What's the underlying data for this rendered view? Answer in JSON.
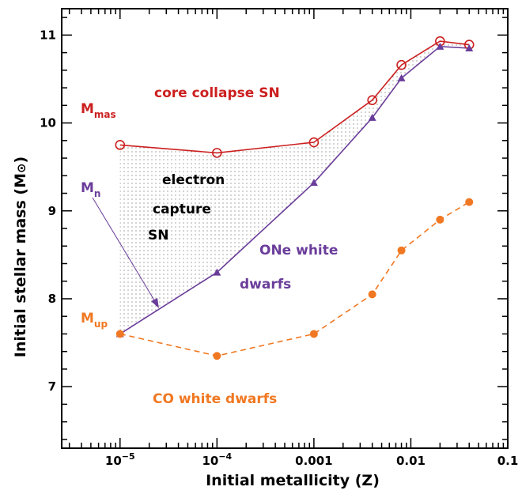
{
  "chart_data": {
    "type": "line",
    "xscale": "log",
    "xlabel": "Initial metallicity (Z)",
    "ylabel_main": "Initial stellar mass (M",
    "ylabel_close": ")",
    "sun_symbol": "⊙",
    "xlim": [
      2.5e-06,
      0.1
    ],
    "ylim": [
      6.3,
      11.3
    ],
    "x_ticks": [
      {
        "value": 1e-05,
        "base": "10",
        "exp": "−5"
      },
      {
        "value": 0.0001,
        "base": "10",
        "exp": "−4"
      },
      {
        "value": 0.001,
        "label": "0.001"
      },
      {
        "value": 0.01,
        "label": "0.01"
      },
      {
        "value": 0.1,
        "label": "0.1"
      }
    ],
    "y_ticks": [
      {
        "value": 7,
        "label": "7"
      },
      {
        "value": 8,
        "label": "8"
      },
      {
        "value": 9,
        "label": "9"
      },
      {
        "value": 10,
        "label": "10"
      },
      {
        "value": 11,
        "label": "11"
      }
    ],
    "series": [
      {
        "name": "Mmas",
        "label_main": "M",
        "label_sub": "mas",
        "color": "#cc1f1f",
        "marker": "open-circle",
        "dash": "solid",
        "x": [
          1e-05,
          0.0001,
          0.001,
          0.004,
          0.008,
          0.02,
          0.04
        ],
        "y": [
          9.75,
          9.66,
          9.78,
          10.26,
          10.66,
          10.93,
          10.89
        ]
      },
      {
        "name": "Mn",
        "label_main": "M",
        "label_sub": "n",
        "color": "#6a3d9a",
        "marker": "triangle",
        "dash": "solid",
        "x": [
          1e-05,
          0.0001,
          0.001,
          0.004,
          0.008,
          0.02,
          0.04
        ],
        "y": [
          7.6,
          8.3,
          9.32,
          10.06,
          10.51,
          10.87,
          10.85
        ]
      },
      {
        "name": "Mup",
        "label_main": "M",
        "label_sub": "up",
        "color": "#f07822",
        "marker": "filled-circle",
        "dash": "dashed",
        "x": [
          1e-05,
          0.0001,
          0.001,
          0.004,
          0.008,
          0.02,
          0.04
        ],
        "y": [
          7.6,
          7.35,
          7.6,
          8.05,
          8.55,
          8.9,
          9.1
        ]
      }
    ],
    "regions": [
      {
        "name": "core-collapse",
        "text": "core collapse SN",
        "color": "#cc1f1f"
      },
      {
        "name": "electron",
        "text": "electron",
        "color": "#000000"
      },
      {
        "name": "capture",
        "text": "capture",
        "color": "#000000"
      },
      {
        "name": "sn",
        "text": "SN",
        "color": "#000000"
      },
      {
        "name": "one-white",
        "text": "ONe white",
        "color": "#6a3d9a"
      },
      {
        "name": "dwarfs",
        "text": "dwarfs",
        "color": "#6a3d9a"
      },
      {
        "name": "co-white-dwarfs",
        "text": "CO white dwarfs",
        "color": "#f07822"
      }
    ],
    "shaded_region": "between Mmas and Mn (electron capture SN)"
  }
}
